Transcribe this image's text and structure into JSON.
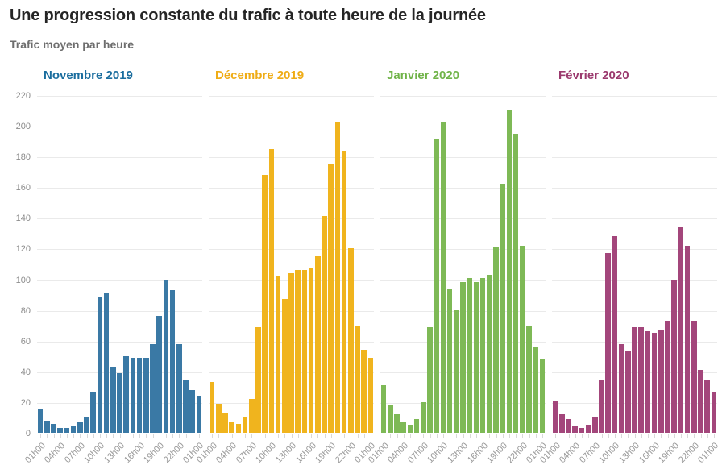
{
  "header": {
    "title": "Une progression constante du trafic à toute heure de la journée",
    "subtitle": "Trafic moyen par heure"
  },
  "chart_data": {
    "type": "bar",
    "layout": "small-multiples",
    "ylim": [
      0,
      220
    ],
    "yticks": [
      0,
      20,
      40,
      60,
      80,
      100,
      120,
      140,
      160,
      180,
      200,
      220
    ],
    "grid": true,
    "x_tick_labels": [
      "01h00",
      "04h00",
      "07h00",
      "10h00",
      "13h00",
      "16h00",
      "19h00",
      "22h00",
      "01h00"
    ],
    "label_every": 3,
    "bars_per_panel": 25,
    "panels": [
      {
        "title": "Novembre 2019",
        "title_color": "#1a6d9e",
        "bar_color": "#3a79a5",
        "values": [
          15,
          8,
          6,
          3,
          3,
          4,
          7,
          10,
          27,
          89,
          91,
          43,
          39,
          50,
          49,
          49,
          49,
          58,
          76,
          99,
          93,
          58,
          34,
          28,
          24
        ]
      },
      {
        "title": "Décembre 2019",
        "title_color": "#efac15",
        "bar_color": "#f0b41e",
        "values": [
          33,
          19,
          13,
          7,
          6,
          10,
          22,
          69,
          168,
          185,
          102,
          87,
          104,
          106,
          106,
          107,
          115,
          141,
          175,
          202,
          184,
          120,
          70,
          54,
          49
        ]
      },
      {
        "title": "Janvier 2020",
        "title_color": "#70b348",
        "bar_color": "#7eb956",
        "values": [
          31,
          18,
          12,
          7,
          5,
          9,
          20,
          69,
          191,
          202,
          94,
          80,
          98,
          101,
          98,
          101,
          103,
          121,
          162,
          210,
          195,
          122,
          70,
          56,
          48
        ]
      },
      {
        "title": "Février 2020",
        "title_color": "#9b3a6e",
        "bar_color": "#a3467b",
        "values": [
          21,
          12,
          9,
          4,
          3,
          5,
          10,
          34,
          117,
          128,
          58,
          53,
          69,
          69,
          66,
          65,
          67,
          73,
          99,
          134,
          122,
          73,
          41,
          34,
          27
        ]
      }
    ]
  }
}
